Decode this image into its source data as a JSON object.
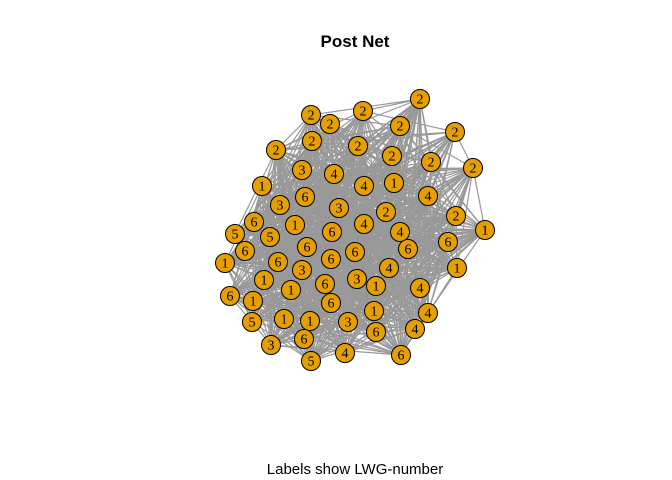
{
  "title": "Post Net",
  "caption": "Labels show LWG-number",
  "nodes": [
    {
      "label": "2"
    },
    {
      "label": "2"
    },
    {
      "label": "2"
    },
    {
      "label": "2"
    },
    {
      "label": "2"
    },
    {
      "label": "2"
    },
    {
      "label": "2"
    },
    {
      "label": "2"
    },
    {
      "label": "2"
    },
    {
      "label": "2"
    },
    {
      "label": "2"
    },
    {
      "label": "2"
    },
    {
      "label": "3"
    },
    {
      "label": "4"
    },
    {
      "label": "4"
    },
    {
      "label": "1"
    },
    {
      "label": "1"
    },
    {
      "label": "4"
    },
    {
      "label": "6"
    },
    {
      "label": "3"
    },
    {
      "label": "3"
    },
    {
      "label": "2"
    },
    {
      "label": "2"
    },
    {
      "label": "6"
    },
    {
      "label": "1"
    },
    {
      "label": "4"
    },
    {
      "label": "1"
    },
    {
      "label": "5"
    },
    {
      "label": "5"
    },
    {
      "label": "6"
    },
    {
      "label": "4"
    },
    {
      "label": "6"
    },
    {
      "label": "6"
    },
    {
      "label": "6"
    },
    {
      "label": "6"
    },
    {
      "label": "6"
    },
    {
      "label": "1"
    },
    {
      "label": "6"
    },
    {
      "label": "6"
    },
    {
      "label": "1"
    },
    {
      "label": "3"
    },
    {
      "label": "4"
    },
    {
      "label": "1"
    },
    {
      "label": "3"
    },
    {
      "label": "1"
    },
    {
      "label": "6"
    },
    {
      "label": "1"
    },
    {
      "label": "4"
    },
    {
      "label": "6"
    },
    {
      "label": "1"
    },
    {
      "label": "6"
    },
    {
      "label": "4"
    },
    {
      "label": "1"
    },
    {
      "label": "5"
    },
    {
      "label": "1"
    },
    {
      "label": "1"
    },
    {
      "label": "3"
    },
    {
      "label": "4"
    },
    {
      "label": "6"
    },
    {
      "label": "6"
    },
    {
      "label": "3"
    },
    {
      "label": "4"
    },
    {
      "label": "6"
    },
    {
      "label": "5"
    }
  ]
}
